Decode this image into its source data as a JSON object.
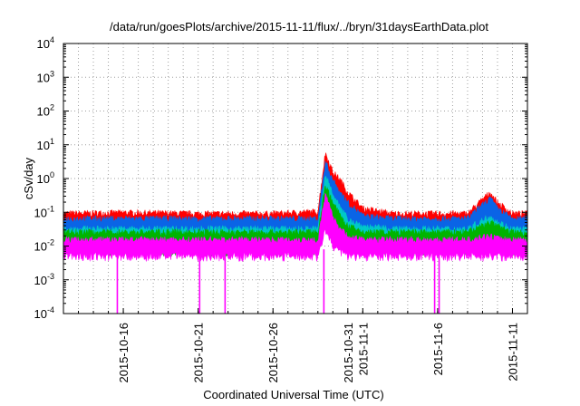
{
  "chart_data": {
    "type": "line",
    "title": "/data/run/goesPlots/archive/2015-11-11/flux/../bryn/31daysEarthData.plot",
    "xlabel": "Coordinated Universal Time (UTC)",
    "ylabel": "cSv/day",
    "yscale": "log",
    "ylim": [
      0.0001,
      10000
    ],
    "xlim": [
      "2015-10-12",
      "2015-11-12"
    ],
    "y_ticks": [
      {
        "base": "10",
        "exp": "-4",
        "value": 0.0001
      },
      {
        "base": "10",
        "exp": "-3",
        "value": 0.001
      },
      {
        "base": "10",
        "exp": "-2",
        "value": 0.01
      },
      {
        "base": "10",
        "exp": "-1",
        "value": 0.1
      },
      {
        "base": "10",
        "exp": "0",
        "value": 1
      },
      {
        "base": "10",
        "exp": "1",
        "value": 10
      },
      {
        "base": "10",
        "exp": "2",
        "value": 100
      },
      {
        "base": "10",
        "exp": "3",
        "value": 1000
      },
      {
        "base": "10",
        "exp": "4",
        "value": 10000
      }
    ],
    "x_ticks": [
      "2015-10-16",
      "2015-10-21",
      "2015-10-26",
      "2015-10-31",
      "2015-11-1",
      "2015-11-6",
      "2015-11-11"
    ],
    "grid": true,
    "series": [
      {
        "color": "#ff0000",
        "x": [
          "2015-10-12",
          "2015-10-16",
          "2015-10-21",
          "2015-10-26",
          "2015-10-29",
          "2015-10-29.5",
          "2015-10-30",
          "2015-10-30.5",
          "2015-10-31",
          "2015-11-1",
          "2015-11-3",
          "2015-11-6",
          "2015-11-8",
          "2015-11-9.5",
          "2015-11-10",
          "2015-11-11",
          "2015-11-12"
        ],
        "values": [
          0.07,
          0.075,
          0.07,
          0.07,
          0.08,
          4.5,
          1.2,
          0.7,
          0.3,
          0.1,
          0.07,
          0.07,
          0.07,
          0.3,
          0.15,
          0.07,
          0.07
        ]
      },
      {
        "color": "#0a64e6",
        "x": [
          "2015-10-12",
          "2015-10-16",
          "2015-10-21",
          "2015-10-26",
          "2015-10-29",
          "2015-10-29.5",
          "2015-10-30",
          "2015-10-30.5",
          "2015-10-31",
          "2015-11-1",
          "2015-11-3",
          "2015-11-6",
          "2015-11-8",
          "2015-11-9.5",
          "2015-11-10",
          "2015-11-11",
          "2015-11-12"
        ],
        "values": [
          0.05,
          0.05,
          0.05,
          0.05,
          0.05,
          2.5,
          0.7,
          0.3,
          0.15,
          0.06,
          0.05,
          0.05,
          0.05,
          0.2,
          0.1,
          0.05,
          0.05
        ]
      },
      {
        "color": "#00c8c8",
        "x": [
          "2015-10-12",
          "2015-10-16",
          "2015-10-21",
          "2015-10-26",
          "2015-10-29",
          "2015-10-29.5",
          "2015-10-30",
          "2015-10-30.5",
          "2015-10-31",
          "2015-11-1",
          "2015-11-3",
          "2015-11-6",
          "2015-11-8",
          "2015-11-9.5",
          "2015-11-10",
          "2015-11-11",
          "2015-11-12"
        ],
        "values": [
          0.025,
          0.025,
          0.025,
          0.025,
          0.025,
          1.0,
          0.3,
          0.1,
          0.05,
          0.03,
          0.025,
          0.025,
          0.025,
          0.06,
          0.04,
          0.025,
          0.025
        ]
      },
      {
        "color": "#00b400",
        "x": [
          "2015-10-12",
          "2015-10-16",
          "2015-10-21",
          "2015-10-26",
          "2015-10-29",
          "2015-10-29.5",
          "2015-10-30",
          "2015-10-30.5",
          "2015-10-31",
          "2015-11-1",
          "2015-11-3",
          "2015-11-6",
          "2015-11-8",
          "2015-11-9.5",
          "2015-11-10",
          "2015-11-11",
          "2015-11-12"
        ],
        "values": [
          0.02,
          0.02,
          0.02,
          0.02,
          0.02,
          0.5,
          0.15,
          0.06,
          0.03,
          0.02,
          0.02,
          0.02,
          0.02,
          0.04,
          0.03,
          0.02,
          0.02
        ]
      },
      {
        "color": "#ff00ff",
        "x": [
          "2015-10-12",
          "2015-10-16",
          "2015-10-21",
          "2015-10-26",
          "2015-10-29",
          "2015-10-29.5",
          "2015-10-30",
          "2015-10-30.5",
          "2015-10-31",
          "2015-11-1",
          "2015-11-3",
          "2015-11-6",
          "2015-11-8",
          "2015-11-9.5",
          "2015-11-10",
          "2015-11-11",
          "2015-11-12"
        ],
        "values": [
          0.012,
          0.012,
          0.012,
          0.012,
          0.012,
          0.25,
          0.06,
          0.025,
          0.015,
          0.012,
          0.012,
          0.012,
          0.012,
          0.015,
          0.013,
          0.012,
          0.012
        ],
        "min_values": [
          0.005,
          0.005,
          0.005,
          0.005,
          0.005,
          0.03,
          0.01,
          0.007,
          0.005,
          0.005,
          0.005,
          0.005,
          0.005,
          0.005,
          0.005,
          0.005,
          0.005
        ],
        "dropouts": [
          "2015-10-15.6",
          "2015-10-21.1",
          "2015-10-22.8",
          "2015-10-29.4",
          "2015-11-5.8",
          "2015-11-6.1"
        ]
      }
    ]
  }
}
